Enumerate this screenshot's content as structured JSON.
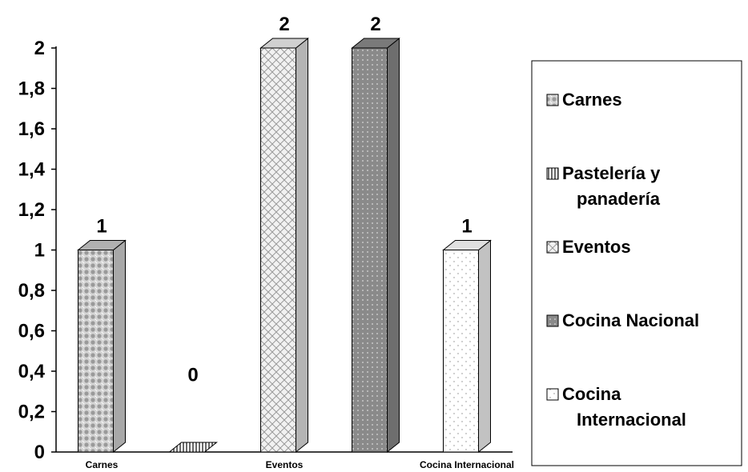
{
  "chart_data": {
    "type": "bar",
    "categories": [
      "Carnes",
      "Pastelería y panadería",
      "Eventos",
      "Cocina Nacional",
      "Cocina Internacional"
    ],
    "x_tick_labels": [
      "Carnes",
      "",
      "Eventos",
      "",
      "Cocina Internacional"
    ],
    "values": [
      1,
      0,
      2,
      2,
      1
    ],
    "data_labels": [
      "1",
      "0",
      "2",
      "2",
      "1"
    ],
    "ylim": [
      0,
      2
    ],
    "y_ticks": [
      0,
      0.2,
      0.4,
      0.6,
      0.8,
      1,
      1.2,
      1.4,
      1.6,
      1.8,
      2
    ],
    "y_tick_labels": [
      "0",
      "0,2",
      "0,4",
      "0,6",
      "0,8",
      "1",
      "1,2",
      "1,4",
      "1,6",
      "1,8",
      "2"
    ],
    "legend": {
      "placement": "right",
      "entries": [
        {
          "lines": [
            "Carnes"
          ]
        },
        {
          "lines": [
            "Pastelería y",
            "panadería"
          ]
        },
        {
          "lines": [
            "Eventos"
          ]
        },
        {
          "lines": [
            "Cocina Nacional"
          ]
        },
        {
          "lines": [
            "Cocina",
            "Internacional"
          ]
        }
      ]
    },
    "style_3d": true,
    "grid": false,
    "colors": {
      "Carnes": "#c8c8c8",
      "Pastelería y panadería": "#9a9a9a",
      "Eventos": "#e6e6e6",
      "Cocina Nacional": "#8a8a8a",
      "Cocina Internacional": "#ffffff"
    }
  }
}
